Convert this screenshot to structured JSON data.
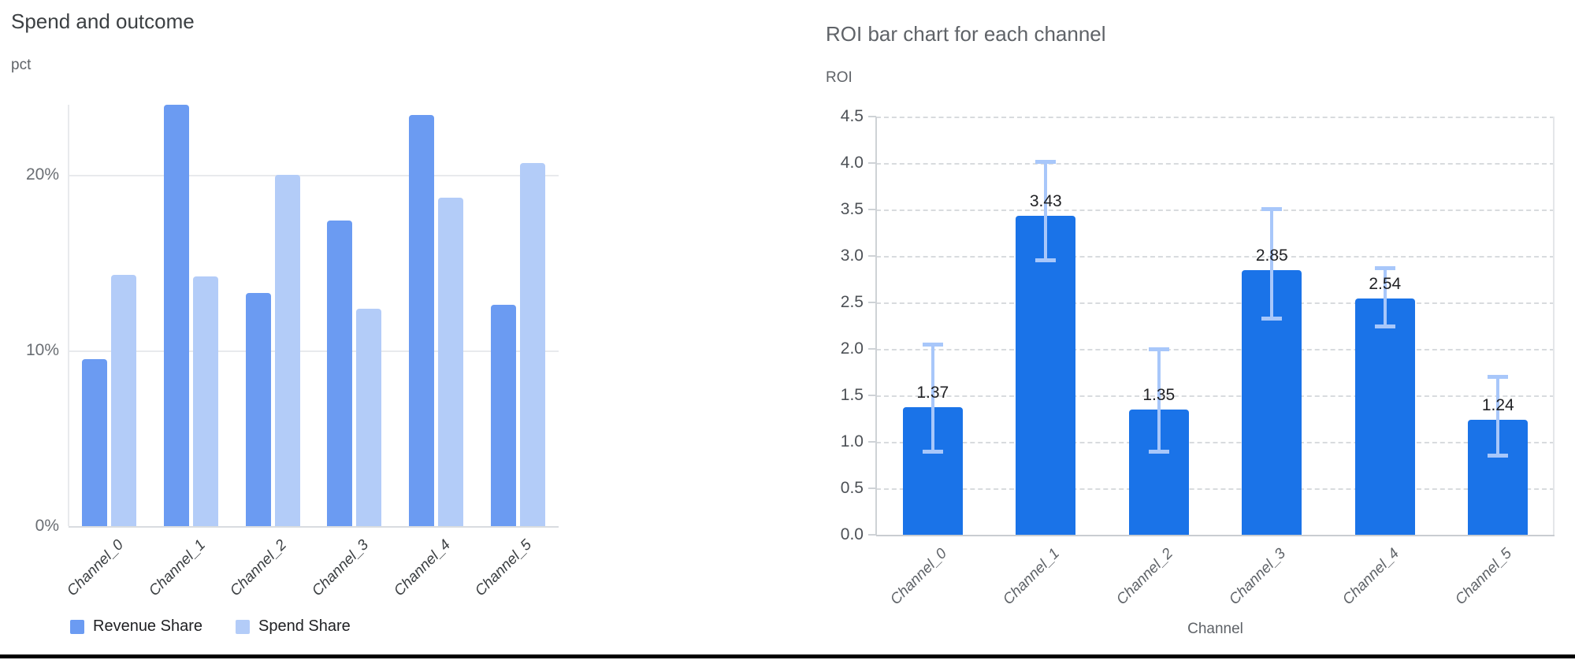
{
  "page": {
    "background": "#ffffff",
    "bottom_rule_color": "#000000"
  },
  "chart_data": [
    {
      "type": "bar",
      "title": "Spend and outcome",
      "ylabel": "pct",
      "xlabel": "",
      "categories": [
        "Channel_0",
        "Channel_1",
        "Channel_2",
        "Channel_3",
        "Channel_4",
        "Channel_5"
      ],
      "series": [
        {
          "name": "Revenue Share",
          "color": "#6B9BF2",
          "values": [
            9.5,
            24.0,
            13.3,
            17.4,
            23.4,
            12.6
          ]
        },
        {
          "name": "Spend Share",
          "color": "#B3CCF8",
          "values": [
            14.3,
            14.2,
            20.0,
            12.4,
            18.7,
            20.7
          ]
        }
      ],
      "ylim": [
        0,
        24
      ],
      "yticks": [
        {
          "v": 0,
          "label": "0%"
        },
        {
          "v": 10,
          "label": "10%"
        },
        {
          "v": 20,
          "label": "20%"
        }
      ],
      "grid": "solid",
      "legend_position": "bottom",
      "units": "percent of total"
    },
    {
      "type": "bar",
      "title": "ROI bar chart for each channel",
      "ylabel": "ROI",
      "xlabel": "Channel",
      "categories": [
        "Channel_0",
        "Channel_1",
        "Channel_2",
        "Channel_3",
        "Channel_4",
        "Channel_5"
      ],
      "series": [
        {
          "name": "ROI",
          "color": "#1A73E8",
          "values": [
            1.37,
            3.43,
            1.35,
            2.85,
            2.54,
            1.24
          ]
        }
      ],
      "data_labels": [
        "1.37",
        "3.43",
        "1.35",
        "2.85",
        "2.54",
        "1.24"
      ],
      "error_bars": {
        "color": "#A8C7FA",
        "low": [
          0.89,
          2.95,
          0.89,
          2.32,
          2.24,
          0.85
        ],
        "high": [
          2.05,
          4.02,
          2.0,
          3.51,
          2.87,
          1.7
        ]
      },
      "ylim": [
        0,
        4.5
      ],
      "yticks": [
        {
          "v": 0,
          "label": "0.0"
        },
        {
          "v": 0.5,
          "label": "0.5"
        },
        {
          "v": 1,
          "label": "1.0"
        },
        {
          "v": 1.5,
          "label": "1.5"
        },
        {
          "v": 2,
          "label": "2.0"
        },
        {
          "v": 2.5,
          "label": "2.5"
        },
        {
          "v": 3,
          "label": "3.0"
        },
        {
          "v": 3.5,
          "label": "3.5"
        },
        {
          "v": 4,
          "label": "4.0"
        },
        {
          "v": 4.5,
          "label": "4.5"
        }
      ],
      "grid": "dashed",
      "legend_position": "none"
    }
  ]
}
